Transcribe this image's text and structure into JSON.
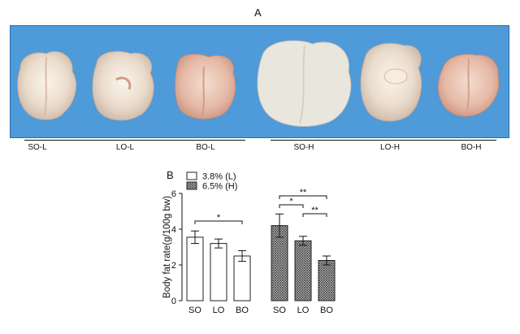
{
  "panel_a": {
    "label": "A",
    "sample_labels": [
      "SO-L",
      "LO-L",
      "BO-L",
      "SO-H",
      "LO-H",
      "BO-H"
    ]
  },
  "panel_b": {
    "label": "B"
  },
  "chart_data": {
    "type": "bar",
    "title": "",
    "xlabel": "",
    "ylabel": "Body fat rate(g/100g bw)",
    "ylim": [
      0,
      6
    ],
    "yticks": [
      0,
      2,
      4,
      6
    ],
    "categories": [
      "SO",
      "LO",
      "BO"
    ],
    "series": [
      {
        "name": "3.8% (L)",
        "values": [
          3.55,
          3.2,
          2.5
        ],
        "errors": [
          0.35,
          0.25,
          0.3
        ],
        "pattern": "open"
      },
      {
        "name": "6.5% (H)",
        "values": [
          4.2,
          3.35,
          2.25
        ],
        "errors": [
          0.65,
          0.25,
          0.25
        ],
        "pattern": "crosshatch"
      }
    ],
    "significance": [
      {
        "group": "3.8% (L)",
        "from": "SO",
        "to": "BO",
        "label": "*"
      },
      {
        "group": "6.5% (H)",
        "from": "SO",
        "to": "LO",
        "label": "*"
      },
      {
        "group": "6.5% (H)",
        "from": "SO",
        "to": "BO",
        "label": "**"
      },
      {
        "group": "6.5% (H)",
        "from": "LO",
        "to": "BO",
        "label": "**"
      }
    ],
    "legend_position": "top-left",
    "colors": {
      "open": "#ffffff",
      "hatched_fill": "#bdbdbd",
      "hatch_line": "#333333",
      "stroke": "#222222"
    }
  }
}
